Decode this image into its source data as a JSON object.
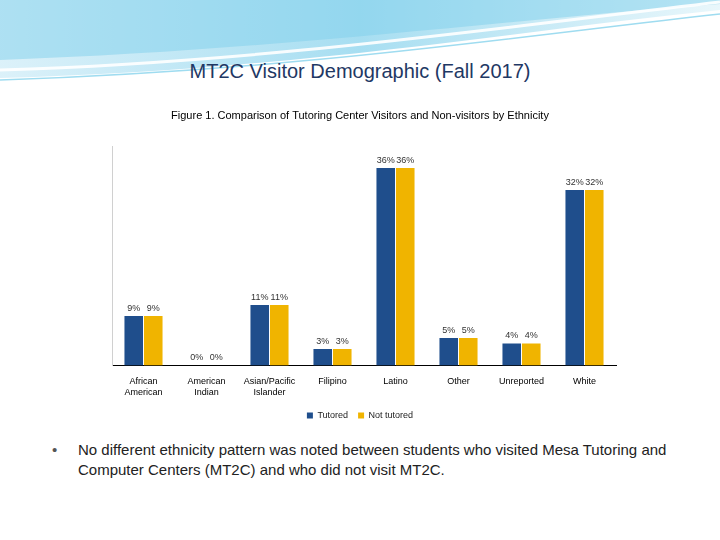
{
  "slide": {
    "title": "MT2C Visitor Demographic (Fall 2017)",
    "bullets": [
      "No different ethnicity pattern was noted between students who visited Mesa Tutoring and Computer Centers (MT2C) and who did not visit MT2C."
    ]
  },
  "chart_data": {
    "type": "bar",
    "title": "Figure 1. Comparison of Tutoring Center Visitors and Non-visitors by Ethnicity",
    "categories": [
      "African American",
      "American Indian",
      "Asian/Pacific Islander",
      "Filipino",
      "Latino",
      "Other",
      "Unreported",
      "White"
    ],
    "series": [
      {
        "name": "Tutored",
        "color": "#1f4e8c",
        "values": [
          9,
          0,
          11,
          3,
          36,
          5,
          4,
          32
        ],
        "value_labels": [
          "9%",
          "0%",
          "11%",
          "3%",
          "36%",
          "5%",
          "4%",
          "32%"
        ]
      },
      {
        "name": "Not tutored",
        "color": "#f0b400",
        "values": [
          9,
          0,
          11,
          3,
          36,
          5,
          4,
          32
        ],
        "value_labels": [
          "9%",
          "0%",
          "11%",
          "3%",
          "36%",
          "5%",
          "4%",
          "32%"
        ]
      }
    ],
    "ylim": [
      0,
      40
    ],
    "yticks": [],
    "grid": false,
    "legend": "bottom",
    "data_labels": true,
    "tick_labels": "x"
  }
}
